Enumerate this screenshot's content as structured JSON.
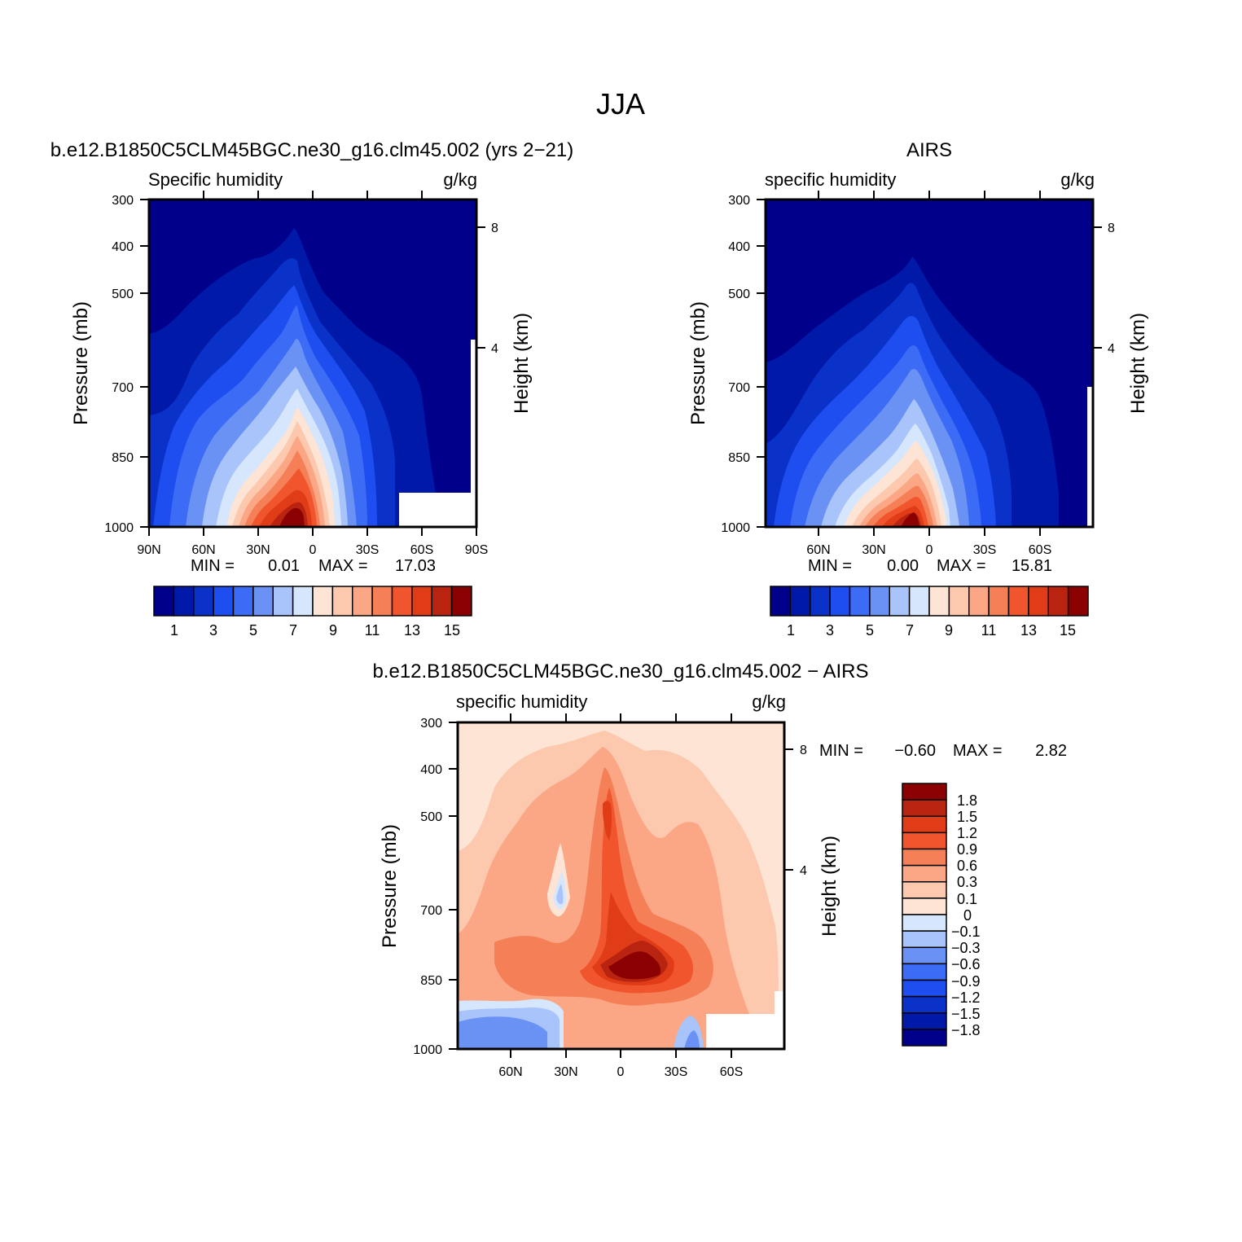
{
  "figure": {
    "title": "JJA",
    "common_colors": {
      "abs_palette": [
        "#00008b",
        "#0019a8",
        "#0a32c8",
        "#1e4ef0",
        "#3c6cf5",
        "#6a92f5",
        "#a8c4fa",
        "#d6e6fc",
        "#fde4d4",
        "#fcc8ae",
        "#fba785",
        "#f57f56",
        "#f0552d",
        "#e03c18",
        "#b82410",
        "#8b0000"
      ],
      "diff_palette": [
        "#00008b",
        "#0019a8",
        "#0a32c8",
        "#1e4ef0",
        "#3c6cf5",
        "#6a92f5",
        "#a8c4fa",
        "#d6e6fc",
        "#fde4d4",
        "#fcc8ae",
        "#fba785",
        "#f57f56",
        "#f0552d",
        "#e03c18",
        "#b82410",
        "#8b0000"
      ]
    }
  },
  "panels": [
    {
      "title": "b.e12.B1850C5CLM45BGC.ne30_g16.clm45.002 (yrs 2−21)",
      "left_label": "Specific humidity",
      "right_label": "g/kg",
      "ylabel": "Pressure (mb)",
      "y2label": "Height (km)",
      "yticks": [
        "300",
        "400",
        "500",
        "700",
        "850",
        "1000"
      ],
      "y2ticks": [
        "8",
        "4"
      ],
      "xticks": [
        "90N",
        "60N",
        "30N",
        "0",
        "30S",
        "60S",
        "90S"
      ],
      "stats": {
        "min_label": "MIN =",
        "min": "0.01",
        "max_label": "MAX =",
        "max": "17.03"
      },
      "colorbar_labels": [
        "1",
        "3",
        "5",
        "7",
        "9",
        "11",
        "13",
        "15"
      ]
    },
    {
      "title": "AIRS",
      "left_label": "specific humidity",
      "right_label": "g/kg",
      "ylabel": "Pressure (mb)",
      "y2label": "Height (km)",
      "yticks": [
        "300",
        "400",
        "500",
        "700",
        "850",
        "1000"
      ],
      "y2ticks": [
        "8",
        "4"
      ],
      "xticks": [
        "60N",
        "30N",
        "0",
        "30S",
        "60S"
      ],
      "stats": {
        "min_label": "MIN =",
        "min": "0.00",
        "max_label": "MAX =",
        "max": "15.81"
      },
      "colorbar_labels": [
        "1",
        "3",
        "5",
        "7",
        "9",
        "11",
        "13",
        "15"
      ]
    },
    {
      "title": "b.e12.B1850C5CLM45BGC.ne30_g16.clm45.002 − AIRS",
      "left_label": "specific humidity",
      "right_label": "g/kg",
      "ylabel": "Pressure (mb)",
      "y2label": "Height (km)",
      "yticks": [
        "300",
        "400",
        "500",
        "700",
        "850",
        "1000"
      ],
      "y2ticks": [
        "8",
        "4"
      ],
      "xticks": [
        "60N",
        "30N",
        "0",
        "30S",
        "60S"
      ],
      "stats": {
        "min_label": "MIN =",
        "min": "−0.60",
        "max_label": "MAX =",
        "max": "2.82"
      },
      "colorbar_labels": [
        "1.8",
        "1.5",
        "1.2",
        "0.9",
        "0.6",
        "0.3",
        "0.1",
        "0",
        "−0.1",
        "−0.3",
        "−0.6",
        "−0.9",
        "−1.2",
        "−1.5",
        "−1.8"
      ]
    }
  ],
  "chart_data": [
    {
      "type": "heatmap",
      "title": "b.e12.B1850C5CLM45BGC.ne30_g16.clm45.002 (yrs 2−21)",
      "xlabel": "",
      "ylabel": "Pressure (mb)",
      "y2label": "Height (km)",
      "units": "g/kg",
      "x_range": [
        "90N",
        "90S"
      ],
      "y_range": [
        1000,
        300
      ],
      "y_scale": "log",
      "contour_levels": [
        1,
        2,
        3,
        4,
        5,
        6,
        7,
        8,
        9,
        10,
        11,
        12,
        13,
        14,
        15
      ],
      "min": 0.01,
      "max": 17.03,
      "peak": {
        "lat": -10,
        "pressure": 1000
      }
    },
    {
      "type": "heatmap",
      "title": "AIRS",
      "ylabel": "Pressure (mb)",
      "y2label": "Height (km)",
      "units": "g/kg",
      "y_range": [
        1000,
        300
      ],
      "y_scale": "log",
      "contour_levels": [
        1,
        2,
        3,
        4,
        5,
        6,
        7,
        8,
        9,
        10,
        11,
        12,
        13,
        14,
        15
      ],
      "min": 0.0,
      "max": 15.81,
      "peak": {
        "lat": -10,
        "pressure": 1000
      }
    },
    {
      "type": "heatmap",
      "title": "b.e12.B1850C5CLM45BGC.ne30_g16.clm45.002 − AIRS",
      "ylabel": "Pressure (mb)",
      "y2label": "Height (km)",
      "units": "g/kg",
      "y_range": [
        1000,
        300
      ],
      "y_scale": "log",
      "contour_levels": [
        -1.8,
        -1.5,
        -1.2,
        -0.9,
        -0.6,
        -0.3,
        -0.1,
        0,
        0.1,
        0.3,
        0.6,
        0.9,
        1.2,
        1.5,
        1.8
      ],
      "min": -0.6,
      "max": 2.82,
      "peak": {
        "lat": -5,
        "pressure": 850
      }
    }
  ]
}
